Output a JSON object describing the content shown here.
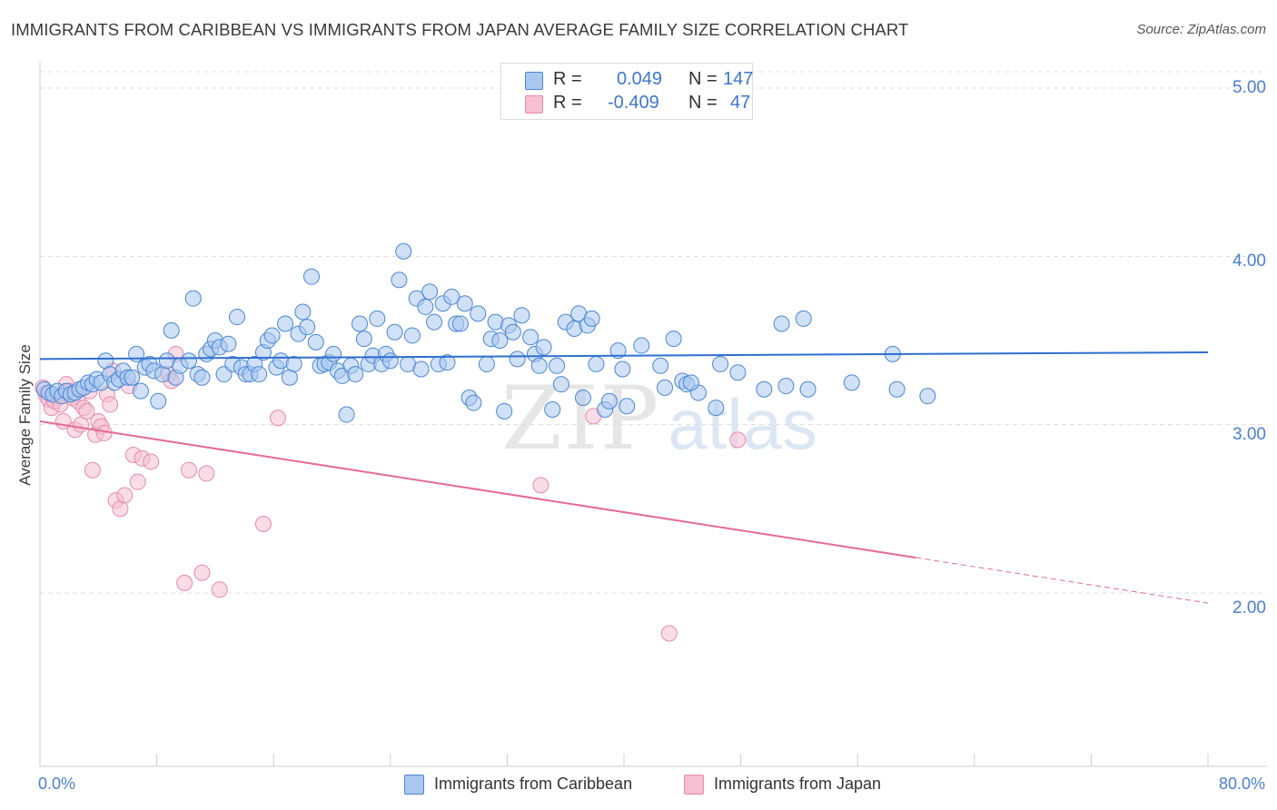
{
  "header": {
    "title": "IMMIGRANTS FROM CARIBBEAN VS IMMIGRANTS FROM JAPAN AVERAGE FAMILY SIZE CORRELATION CHART",
    "source": "Source: ZipAtlas.com"
  },
  "watermark": {
    "zip": "ZIP",
    "atlas": "atlas"
  },
  "legend_top": {
    "rows": [
      {
        "r_label": "R =",
        "r_value": "0.049",
        "n_label": "N =",
        "n_value": "147"
      },
      {
        "r_label": "R =",
        "r_value": "-0.409",
        "n_label": "N =",
        "n_value": "47"
      }
    ]
  },
  "legend_bottom": {
    "items": [
      {
        "label": "Immigrants from Caribbean"
      },
      {
        "label": "Immigrants from Japan"
      }
    ]
  },
  "colors": {
    "caribbean_fill": "#a9c8f0",
    "caribbean_stroke": "#4a86d4",
    "caribbean_line": "#2f6fcf",
    "japan_fill": "#f6bfd2",
    "japan_stroke": "#e88aab",
    "japan_line": "#e46a96",
    "tick_label": "#4a7fd0",
    "grid": "#dcdcdc"
  },
  "chart_data": {
    "type": "scatter",
    "title": "IMMIGRANTS FROM CARIBBEAN VS IMMIGRANTS FROM JAPAN AVERAGE FAMILY SIZE CORRELATION CHART",
    "xlabel": "",
    "ylabel": "Average Family Size",
    "x_tick_labels": [
      "0.0%",
      "80.0%"
    ],
    "y_tick_labels": [
      "2.00",
      "3.00",
      "4.00",
      "5.00"
    ],
    "xlim": [
      0,
      80
    ],
    "ylim": [
      1.05,
      5.1
    ],
    "grid": "horizontal dashed",
    "legend_position": "top-center",
    "series": [
      {
        "name": "Immigrants from Caribbean",
        "stats": {
          "R": 0.049,
          "N": 147
        },
        "trend": {
          "x": [
            0,
            80
          ],
          "y": [
            3.39,
            3.43
          ]
        },
        "points": [
          [
            0.3,
            3.21
          ],
          [
            0.6,
            3.19
          ],
          [
            0.9,
            3.18
          ],
          [
            1.2,
            3.2
          ],
          [
            1.5,
            3.17
          ],
          [
            1.8,
            3.2
          ],
          [
            2.1,
            3.18
          ],
          [
            2.4,
            3.19
          ],
          [
            2.7,
            3.21
          ],
          [
            3.0,
            3.22
          ],
          [
            3.3,
            3.25
          ],
          [
            3.6,
            3.24
          ],
          [
            3.9,
            3.27
          ],
          [
            4.2,
            3.25
          ],
          [
            4.5,
            3.38
          ],
          [
            4.8,
            3.3
          ],
          [
            5.1,
            3.25
          ],
          [
            5.4,
            3.27
          ],
          [
            5.7,
            3.32
          ],
          [
            6.0,
            3.28
          ],
          [
            6.3,
            3.28
          ],
          [
            6.6,
            3.42
          ],
          [
            6.9,
            3.2
          ],
          [
            7.2,
            3.34
          ],
          [
            7.5,
            3.36
          ],
          [
            7.8,
            3.32
          ],
          [
            8.1,
            3.14
          ],
          [
            8.4,
            3.3
          ],
          [
            8.7,
            3.38
          ],
          [
            9.0,
            3.56
          ],
          [
            9.3,
            3.28
          ],
          [
            9.6,
            3.35
          ],
          [
            10.2,
            3.38
          ],
          [
            10.5,
            3.75
          ],
          [
            10.8,
            3.3
          ],
          [
            11.1,
            3.28
          ],
          [
            11.4,
            3.42
          ],
          [
            11.7,
            3.45
          ],
          [
            12.0,
            3.5
          ],
          [
            12.3,
            3.46
          ],
          [
            12.6,
            3.3
          ],
          [
            12.9,
            3.48
          ],
          [
            13.2,
            3.36
          ],
          [
            13.5,
            3.64
          ],
          [
            13.8,
            3.34
          ],
          [
            14.1,
            3.3
          ],
          [
            14.4,
            3.3
          ],
          [
            14.7,
            3.36
          ],
          [
            15.0,
            3.3
          ],
          [
            15.3,
            3.43
          ],
          [
            15.6,
            3.5
          ],
          [
            15.9,
            3.53
          ],
          [
            16.2,
            3.34
          ],
          [
            16.5,
            3.38
          ],
          [
            16.8,
            3.6
          ],
          [
            17.1,
            3.28
          ],
          [
            17.4,
            3.36
          ],
          [
            17.7,
            3.54
          ],
          [
            18.0,
            3.67
          ],
          [
            18.3,
            3.58
          ],
          [
            18.6,
            3.88
          ],
          [
            18.9,
            3.49
          ],
          [
            19.2,
            3.35
          ],
          [
            19.5,
            3.36
          ],
          [
            19.8,
            3.37
          ],
          [
            20.1,
            3.42
          ],
          [
            20.4,
            3.32
          ],
          [
            20.7,
            3.29
          ],
          [
            21.0,
            3.06
          ],
          [
            21.3,
            3.35
          ],
          [
            21.6,
            3.3
          ],
          [
            21.9,
            3.6
          ],
          [
            22.2,
            3.51
          ],
          [
            22.5,
            3.36
          ],
          [
            22.8,
            3.41
          ],
          [
            23.1,
            3.63
          ],
          [
            23.4,
            3.36
          ],
          [
            23.7,
            3.42
          ],
          [
            24.0,
            3.38
          ],
          [
            24.3,
            3.55
          ],
          [
            24.6,
            3.86
          ],
          [
            24.9,
            4.03
          ],
          [
            25.2,
            3.36
          ],
          [
            25.5,
            3.53
          ],
          [
            25.8,
            3.75
          ],
          [
            26.1,
            3.33
          ],
          [
            26.4,
            3.7
          ],
          [
            26.7,
            3.79
          ],
          [
            27.0,
            3.61
          ],
          [
            27.3,
            3.36
          ],
          [
            27.6,
            3.72
          ],
          [
            27.9,
            3.37
          ],
          [
            28.2,
            3.76
          ],
          [
            28.5,
            3.6
          ],
          [
            28.8,
            3.6
          ],
          [
            29.1,
            3.72
          ],
          [
            29.4,
            3.16
          ],
          [
            29.7,
            3.13
          ],
          [
            30.0,
            3.66
          ],
          [
            30.6,
            3.36
          ],
          [
            30.9,
            3.51
          ],
          [
            31.2,
            3.61
          ],
          [
            31.5,
            3.5
          ],
          [
            31.8,
            3.08
          ],
          [
            32.1,
            3.59
          ],
          [
            32.4,
            3.55
          ],
          [
            32.7,
            3.39
          ],
          [
            33.0,
            3.65
          ],
          [
            33.6,
            3.52
          ],
          [
            33.9,
            3.42
          ],
          [
            34.2,
            3.35
          ],
          [
            34.5,
            3.46
          ],
          [
            35.1,
            3.09
          ],
          [
            35.4,
            3.35
          ],
          [
            35.7,
            3.24
          ],
          [
            36.0,
            3.61
          ],
          [
            36.6,
            3.57
          ],
          [
            36.9,
            3.66
          ],
          [
            37.2,
            3.16
          ],
          [
            37.5,
            3.59
          ],
          [
            37.8,
            3.63
          ],
          [
            38.1,
            3.36
          ],
          [
            38.7,
            3.09
          ],
          [
            39.0,
            3.14
          ],
          [
            39.6,
            3.44
          ],
          [
            39.9,
            3.33
          ],
          [
            40.2,
            3.11
          ],
          [
            41.2,
            3.47
          ],
          [
            42.5,
            3.35
          ],
          [
            42.8,
            3.22
          ],
          [
            43.4,
            3.51
          ],
          [
            44.0,
            3.26
          ],
          [
            44.3,
            3.24
          ],
          [
            45.1,
            3.19
          ],
          [
            46.3,
            3.1
          ],
          [
            46.6,
            3.36
          ],
          [
            47.8,
            3.31
          ],
          [
            49.6,
            3.21
          ],
          [
            50.8,
            3.6
          ],
          [
            51.1,
            3.23
          ],
          [
            52.3,
            3.63
          ],
          [
            52.6,
            3.21
          ],
          [
            55.6,
            3.25
          ],
          [
            58.4,
            3.42
          ],
          [
            58.7,
            3.21
          ],
          [
            60.8,
            3.17
          ],
          [
            44.6,
            3.25
          ]
        ]
      },
      {
        "name": "Immigrants from Japan",
        "stats": {
          "R": -0.409,
          "N": 47
        },
        "trend": {
          "x": [
            0,
            60
          ],
          "y": [
            3.02,
            2.21
          ]
        },
        "trend_extrapolated": {
          "x": [
            60,
            80
          ],
          "y": [
            2.21,
            1.94
          ]
        },
        "points": [
          [
            0.2,
            3.22
          ],
          [
            0.4,
            3.18
          ],
          [
            0.6,
            3.15
          ],
          [
            0.8,
            3.1
          ],
          [
            1.0,
            3.14
          ],
          [
            1.2,
            3.17
          ],
          [
            1.4,
            3.12
          ],
          [
            1.6,
            3.02
          ],
          [
            1.8,
            3.24
          ],
          [
            2.0,
            3.2
          ],
          [
            2.2,
            3.16
          ],
          [
            2.4,
            2.97
          ],
          [
            2.6,
            3.14
          ],
          [
            2.8,
            3.0
          ],
          [
            3.0,
            3.1
          ],
          [
            3.2,
            3.08
          ],
          [
            3.4,
            3.2
          ],
          [
            3.6,
            2.73
          ],
          [
            3.8,
            2.94
          ],
          [
            4.0,
            3.02
          ],
          [
            4.2,
            2.99
          ],
          [
            4.4,
            2.95
          ],
          [
            4.6,
            3.18
          ],
          [
            4.8,
            3.12
          ],
          [
            5.0,
            3.32
          ],
          [
            5.2,
            2.55
          ],
          [
            5.5,
            2.5
          ],
          [
            5.8,
            2.58
          ],
          [
            6.1,
            3.23
          ],
          [
            6.4,
            2.82
          ],
          [
            6.7,
            2.66
          ],
          [
            7.0,
            2.8
          ],
          [
            7.6,
            2.78
          ],
          [
            8.8,
            3.3
          ],
          [
            9.0,
            3.26
          ],
          [
            9.3,
            3.42
          ],
          [
            9.9,
            2.06
          ],
          [
            10.2,
            2.73
          ],
          [
            11.1,
            2.12
          ],
          [
            11.4,
            2.71
          ],
          [
            12.3,
            2.02
          ],
          [
            15.3,
            2.41
          ],
          [
            16.3,
            3.04
          ],
          [
            34.3,
            2.64
          ],
          [
            37.9,
            3.05
          ],
          [
            47.8,
            2.91
          ],
          [
            43.1,
            1.76
          ]
        ]
      }
    ]
  }
}
